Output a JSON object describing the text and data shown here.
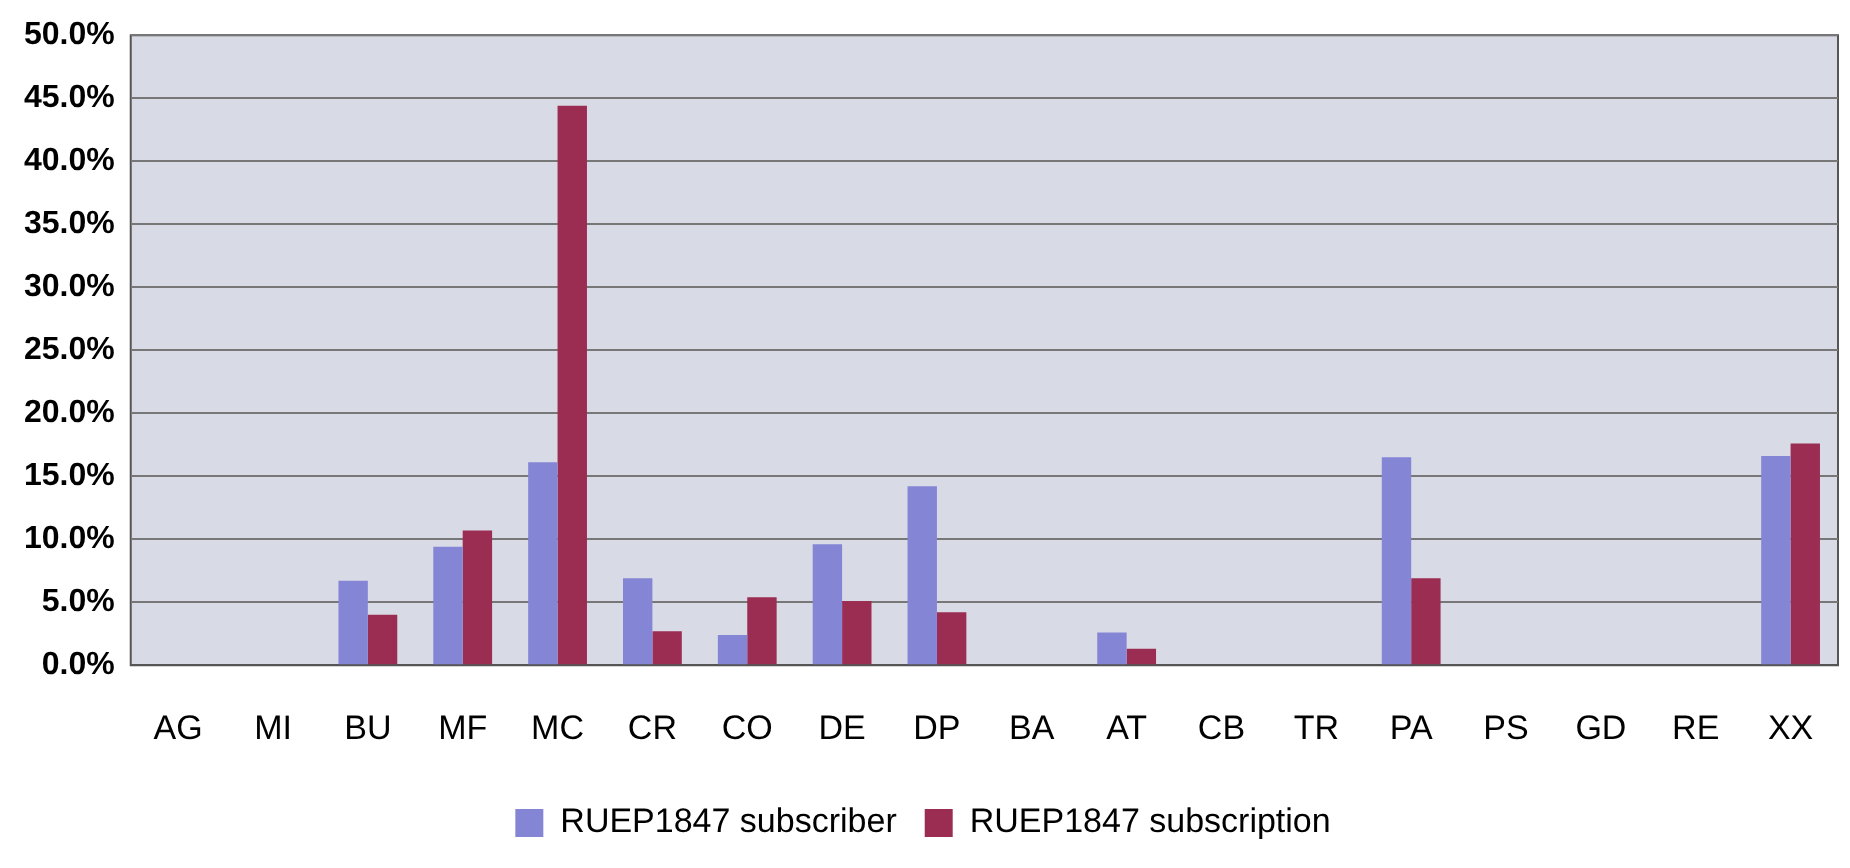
{
  "chart_data": {
    "type": "bar",
    "categories": [
      "AG",
      "MI",
      "BU",
      "MF",
      "MC",
      "CR",
      "CO",
      "DE",
      "DP",
      "BA",
      "AT",
      "CB",
      "TR",
      "PA",
      "PS",
      "GD",
      "RE",
      "XX"
    ],
    "series": [
      {
        "name": "RUEP1847 subscriber",
        "color": "#8585d6",
        "values": [
          0,
          0,
          6.7,
          9.4,
          16.1,
          6.9,
          2.4,
          9.6,
          14.2,
          0,
          2.6,
          0,
          0,
          16.5,
          0,
          0,
          0,
          16.6
        ]
      },
      {
        "name": "RUEP1847 subscription",
        "color": "#9c2d52",
        "values": [
          0,
          0,
          4.0,
          10.7,
          44.4,
          2.7,
          5.4,
          5.1,
          4.2,
          0,
          1.3,
          0,
          0,
          6.9,
          0,
          0,
          0,
          17.6
        ]
      }
    ],
    "ylim": [
      0,
      50
    ],
    "yticks": [
      {
        "value": 0,
        "label": "0.0%"
      },
      {
        "value": 5,
        "label": "5.0%"
      },
      {
        "value": 10,
        "label": "10.0%"
      },
      {
        "value": 15,
        "label": "15.0%"
      },
      {
        "value": 20,
        "label": "20.0%"
      },
      {
        "value": 25,
        "label": "25.0%"
      },
      {
        "value": 30,
        "label": "30.0%"
      },
      {
        "value": 35,
        "label": "35.0%"
      },
      {
        "value": 40,
        "label": "40.0%"
      },
      {
        "value": 45,
        "label": "45.0%"
      },
      {
        "value": 50,
        "label": "50.0%"
      }
    ],
    "grid": "y",
    "legend": "bottom"
  }
}
